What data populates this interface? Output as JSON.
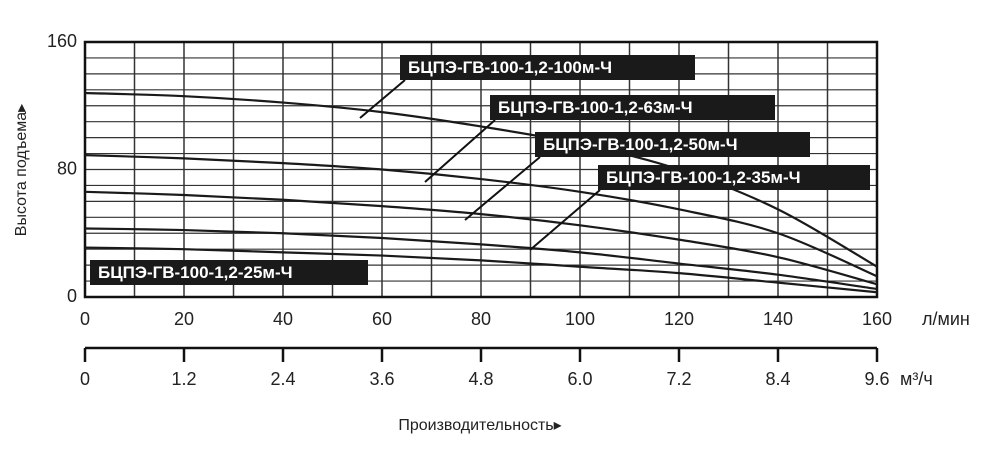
{
  "chart_data": {
    "type": "line",
    "y_label": "Высота подъема▸",
    "x_label": "Производительность▸",
    "x_unit": "л/мин",
    "x2_unit": "м³/ч",
    "x": [
      0,
      20,
      40,
      60,
      80,
      100,
      120,
      140,
      160
    ],
    "xlim": [
      0,
      160
    ],
    "xticks": [
      0,
      20,
      40,
      60,
      80,
      100,
      120,
      140,
      160
    ],
    "xgrid": [
      0,
      10,
      20,
      30,
      40,
      50,
      60,
      70,
      80,
      90,
      100,
      110,
      120,
      130,
      140,
      150,
      160
    ],
    "x2lim": [
      0,
      9.6
    ],
    "x2ticks": [
      0,
      1.2,
      2.4,
      3.6,
      4.8,
      {
        "value": 6,
        "label": "6.0"
      },
      7.2,
      8.4,
      9.6
    ],
    "ylim": [
      0,
      160
    ],
    "yticks": [
      0,
      80,
      160
    ],
    "ygrid": [
      0,
      10,
      20,
      30,
      40,
      50,
      60,
      70,
      80,
      90,
      100,
      110,
      120,
      130,
      140,
      150,
      160
    ],
    "series": [
      {
        "name": "БЦПЭ-ГВ-100-1,2-100м-Ч",
        "color": "#1a1a1a",
        "values": [
          128,
          126,
          122,
          116,
          107,
          96,
          80,
          55,
          19
        ]
      },
      {
        "name": "БЦПЭ-ГВ-100-1,2-63м-Ч",
        "color": "#1a1a1a",
        "values": [
          89,
          87,
          84,
          80,
          74,
          66,
          55,
          40,
          13
        ]
      },
      {
        "name": "БЦПЭ-ГВ-100-1,2-50м-Ч",
        "color": "#1a1a1a",
        "values": [
          66,
          64,
          61,
          57,
          52,
          45,
          36,
          25,
          8
        ]
      },
      {
        "name": "БЦПЭ-ГВ-100-1,2-35м-Ч",
        "color": "#1a1a1a",
        "values": [
          43,
          42,
          40,
          37,
          33,
          28,
          21,
          14,
          5
        ]
      },
      {
        "name": "БЦПЭ-ГВ-100-1,2-25м-Ч",
        "color": "#1a1a1a",
        "values": [
          31,
          30,
          28,
          26,
          23,
          19,
          15,
          9,
          3
        ]
      }
    ]
  }
}
